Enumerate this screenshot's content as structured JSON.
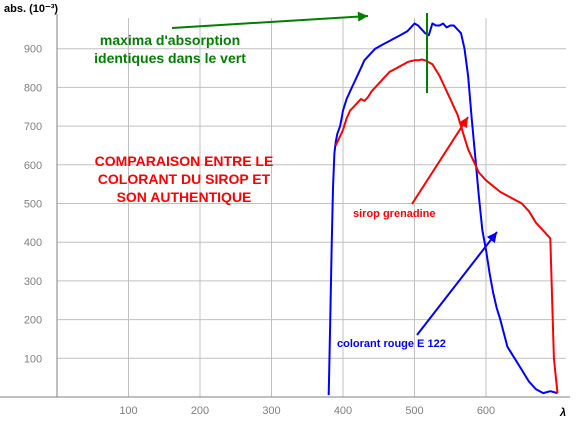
{
  "chart_data": {
    "type": "line",
    "ylabel": "abs. (10⁻³)",
    "xlabel": "λ",
    "xlim": [
      0,
      720
    ],
    "ylim": [
      0,
      1000
    ],
    "x_ticks": [
      "100",
      "200",
      "300",
      "400",
      "500",
      "600"
    ],
    "y_ticks": [
      "100",
      "200",
      "300",
      "400",
      "500",
      "600",
      "700",
      "800",
      "900"
    ],
    "grid": true,
    "colors": {
      "blue": "#0000ff",
      "red": "#ff0000",
      "green": "#008000",
      "grid": "#c0c0c0"
    },
    "series": [
      {
        "name": "colorant rouge E 122",
        "color": "#0000ff",
        "x": [
          380,
          382,
          384,
          386,
          388,
          390,
          392,
          394,
          396,
          398,
          400,
          405,
          410,
          415,
          420,
          425,
          430,
          435,
          440,
          445,
          450,
          455,
          460,
          465,
          470,
          475,
          480,
          485,
          490,
          495,
          500,
          505,
          510,
          515,
          520,
          525,
          530,
          535,
          540,
          545,
          550,
          555,
          560,
          565,
          570,
          575,
          580,
          585,
          590,
          595,
          600,
          605,
          610,
          615,
          620,
          630,
          640,
          650,
          660,
          670,
          680,
          690,
          700
        ],
        "y": [
          5,
          180,
          380,
          540,
          630,
          660,
          680,
          690,
          700,
          720,
          740,
          770,
          790,
          810,
          830,
          850,
          870,
          880,
          890,
          900,
          905,
          910,
          915,
          920,
          925,
          930,
          935,
          940,
          945,
          955,
          965,
          960,
          950,
          940,
          935,
          965,
          960,
          960,
          965,
          955,
          960,
          960,
          950,
          940,
          900,
          830,
          720,
          620,
          520,
          430,
          380,
          320,
          270,
          230,
          200,
          130,
          100,
          70,
          40,
          20,
          10,
          15,
          10
        ]
      },
      {
        "name": "sirop grenadine",
        "color": "#ff0000",
        "x": [
          390,
          395,
          400,
          405,
          410,
          415,
          420,
          425,
          430,
          435,
          440,
          445,
          450,
          455,
          460,
          465,
          470,
          475,
          480,
          485,
          490,
          495,
          500,
          505,
          510,
          515,
          520,
          525,
          530,
          535,
          540,
          545,
          550,
          555,
          560,
          565,
          570,
          575,
          580,
          585,
          590,
          600,
          610,
          620,
          630,
          640,
          650,
          660,
          670,
          680,
          690,
          695,
          700
        ],
        "y": [
          650,
          670,
          690,
          720,
          740,
          750,
          760,
          770,
          765,
          775,
          790,
          800,
          810,
          820,
          830,
          840,
          845,
          850,
          855,
          860,
          865,
          868,
          870,
          870,
          872,
          870,
          865,
          860,
          845,
          830,
          810,
          790,
          770,
          750,
          730,
          700,
          670,
          640,
          620,
          600,
          580,
          560,
          545,
          530,
          520,
          510,
          500,
          480,
          450,
          430,
          410,
          100,
          10
        ]
      }
    ],
    "annotations": {
      "maxima": "maxima d'absorption\nidentiques dans le vert",
      "comparaison": "COMPARAISON ENTRE  LE\nCOLORANT DU SIROP ET\nSON AUTHENTIQUE",
      "sirop": "sirop grenadine",
      "colorant": "colorant rouge E 122"
    }
  }
}
